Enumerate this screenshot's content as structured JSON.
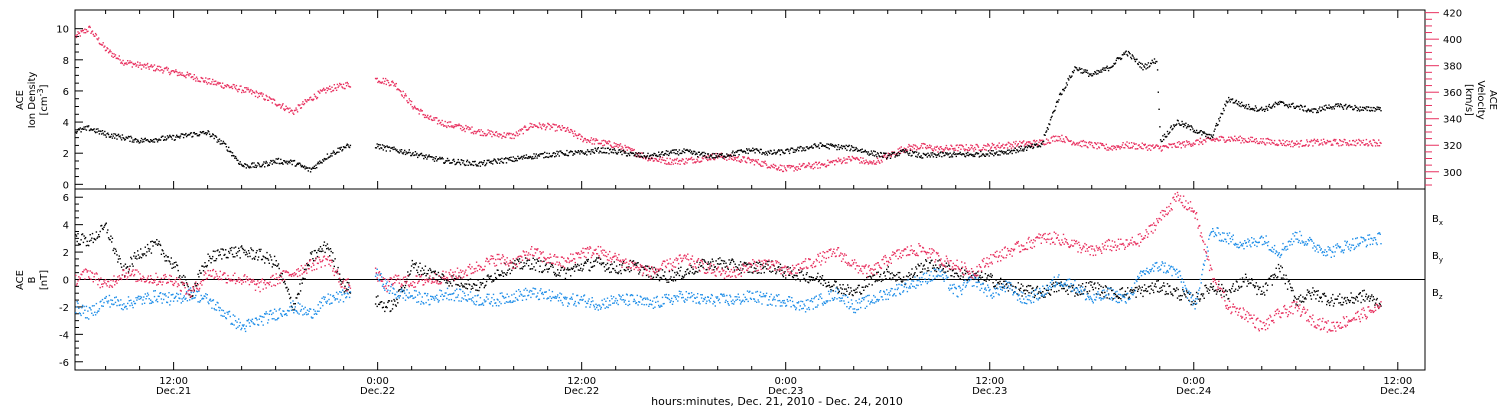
{
  "colors": {
    "black": "#000000",
    "pink": "#e8305f",
    "blue": "#1f8ee8"
  },
  "xaxis": {
    "title": "hours:minutes, Dec. 21, 2010 - Dec. 24, 2010",
    "ticks": [
      {
        "t": 12,
        "time": "12:00",
        "date": "Dec.21"
      },
      {
        "t": 24,
        "time": "0:00",
        "date": "Dec.22"
      },
      {
        "t": 36,
        "time": "12:00",
        "date": "Dec.22"
      },
      {
        "t": 48,
        "time": "0:00",
        "date": "Dec.23"
      },
      {
        "t": 60,
        "time": "12:00",
        "date": "Dec.23"
      },
      {
        "t": 72,
        "time": "0:00",
        "date": "Dec.24"
      },
      {
        "t": 84,
        "time": "12:00",
        "date": "Dec.24"
      }
    ],
    "range_hours": [
      6.2,
      85.6
    ],
    "hours_origin_label": "0:00 Dec.21"
  },
  "chart_data": [
    {
      "type": "scatter",
      "panel": "top",
      "ylabel_left": [
        "ACE",
        "Ion Density",
        "[cm^-3]"
      ],
      "ylabel_right": [
        "ACE",
        "Velocity",
        "[km/s]"
      ],
      "y_left_ticks": [
        "0",
        "2",
        "4",
        "6",
        "8",
        "10"
      ],
      "y_right_ticks": [
        "300",
        "320",
        "340",
        "360",
        "380",
        "400",
        "420"
      ],
      "ylim_left": [
        -0.3,
        11.2
      ],
      "ylim_right": [
        287,
        422
      ],
      "series": [
        {
          "color": "black",
          "x": [
            6.2,
            7,
            8,
            9,
            10,
            11,
            12,
            13,
            14,
            15,
            16,
            17,
            18,
            19,
            20,
            21,
            22,
            23.8,
            24.5,
            26,
            27,
            28,
            29,
            30,
            31,
            32,
            33,
            34,
            35,
            36,
            37,
            38,
            39,
            40,
            41,
            42,
            43,
            44,
            45,
            46,
            47,
            48,
            49,
            50,
            51,
            52,
            53,
            54,
            55,
            56,
            57,
            58,
            59,
            60,
            61,
            62,
            63,
            64,
            65,
            66,
            67,
            68,
            69,
            69.8,
            70,
            71,
            72,
            73,
            74,
            75,
            76,
            77,
            78,
            79,
            80,
            81,
            82,
            83
          ],
          "y": [
            3.4,
            3.6,
            3.2,
            3.0,
            2.8,
            2.9,
            3.0,
            3.2,
            3.3,
            2.5,
            1.2,
            1.2,
            1.5,
            1.4,
            0.9,
            1.8,
            2.4,
            2.5,
            2.3,
            2.0,
            1.7,
            1.5,
            1.4,
            1.3,
            1.5,
            1.6,
            1.8,
            1.9,
            2.0,
            2.0,
            2.2,
            2.1,
            1.9,
            1.8,
            2.0,
            2.1,
            1.9,
            1.8,
            2.0,
            2.2,
            2.0,
            2.1,
            2.3,
            2.5,
            2.4,
            2.3,
            2.0,
            1.8,
            2.1,
            1.8,
            1.9,
            1.9,
            1.9,
            2.0,
            2.1,
            2.3,
            2.5,
            5.5,
            7.5,
            7.0,
            7.5,
            8.5,
            7.5,
            8.0,
            2.8,
            4.0,
            3.5,
            3.0,
            5.5,
            5.0,
            4.8,
            5.2,
            5.0,
            4.7,
            5.0,
            5.0,
            4.8,
            4.9
          ],
          "gaps_hours": [
            [
              22.4,
              23.8
            ]
          ]
        },
        {
          "color": "pink",
          "axis": "right",
          "x": [
            6.2,
            7,
            8,
            9,
            10,
            11,
            12,
            13,
            14,
            15,
            16,
            17,
            18,
            19,
            20,
            21,
            22,
            23.8,
            24.5,
            25,
            26,
            27,
            28,
            29,
            30,
            31,
            32,
            33,
            34,
            35,
            36,
            37,
            38,
            39,
            40,
            41,
            42,
            43,
            44,
            45,
            46,
            47,
            48,
            49,
            50,
            51,
            52,
            53,
            54,
            55,
            56,
            57,
            58,
            59,
            60,
            61,
            62,
            63,
            64,
            65,
            66,
            67,
            68,
            69,
            70,
            71,
            72,
            73,
            74,
            75,
            76,
            77,
            78,
            79,
            80,
            81,
            82,
            83
          ],
          "y": [
            402,
            408,
            392,
            383,
            380,
            378,
            375,
            372,
            368,
            365,
            362,
            358,
            352,
            345,
            355,
            362,
            365,
            370,
            368,
            366,
            350,
            340,
            336,
            333,
            330,
            328,
            327,
            335,
            334,
            332,
            325,
            322,
            320,
            315,
            310,
            308,
            308,
            310,
            312,
            310,
            308,
            305,
            302,
            304,
            305,
            308,
            310,
            306,
            312,
            318,
            319,
            317,
            318,
            318,
            319,
            320,
            321,
            322,
            326,
            322,
            320,
            318,
            320,
            319,
            318,
            320,
            322,
            324,
            325,
            324,
            323,
            322,
            321,
            322,
            322,
            322,
            322,
            322
          ],
          "gaps_hours": [
            [
              22.4,
              23.8
            ]
          ]
        }
      ]
    },
    {
      "type": "scatter",
      "panel": "bottom",
      "ylabel_left": [
        "ACE",
        "B",
        "[nT]"
      ],
      "y_ticks": [
        "-6",
        "-4",
        "-2",
        "0",
        "2",
        "4",
        "6"
      ],
      "ylim": [
        -6.6,
        6.6
      ],
      "zero_line": true,
      "legend": [
        "B_x",
        "B_y",
        "B_z"
      ],
      "series": [
        {
          "name": "Bx",
          "color": "black",
          "x": [
            6.2,
            7,
            8,
            9,
            10,
            11,
            12,
            13,
            14,
            15,
            16,
            17,
            18,
            19,
            20,
            21,
            22,
            23.8,
            24.5,
            25,
            26,
            27,
            28,
            29,
            30,
            31,
            32,
            33,
            34,
            35,
            36,
            37,
            38,
            39,
            40,
            41,
            42,
            43,
            44,
            45,
            46,
            47,
            48,
            49,
            50,
            51,
            52,
            53,
            54,
            55,
            56,
            57,
            58,
            59,
            60,
            61,
            62,
            63,
            64,
            65,
            66,
            67,
            68,
            69,
            70,
            71,
            72,
            73,
            74,
            75,
            76,
            77,
            78,
            79,
            80,
            81,
            82,
            83
          ],
          "y": [
            3.0,
            2.8,
            3.8,
            0.5,
            2.0,
            2.5,
            1.0,
            -1.0,
            1.5,
            2.0,
            2.0,
            1.8,
            1.2,
            -2.0,
            1.5,
            2.5,
            -0.5,
            -1.5,
            -2.0,
            -1.8,
            1.0,
            0.5,
            0.0,
            -0.2,
            -0.5,
            0.5,
            1.0,
            1.2,
            0.8,
            0.5,
            1.0,
            1.2,
            0.8,
            1.0,
            0.5,
            0.2,
            0.5,
            1.0,
            1.2,
            1.0,
            0.8,
            1.0,
            0.5,
            0.3,
            0.0,
            -0.5,
            -1.0,
            0.0,
            0.5,
            0.0,
            1.0,
            1.0,
            0.5,
            0.2,
            0.0,
            -0.5,
            -0.8,
            -1.0,
            -0.5,
            -0.8,
            -0.5,
            -1.0,
            -1.0,
            -0.8,
            -0.5,
            -1.0,
            -1.5,
            -0.5,
            -1.0,
            0.0,
            -1.0,
            0.8,
            -1.5,
            -1.0,
            -1.5,
            -1.5,
            -1.2,
            -1.8
          ],
          "gaps_hours": [
            [
              22.4,
              23.8
            ]
          ]
        },
        {
          "name": "By",
          "color": "blue",
          "x": [
            6.2,
            7,
            8,
            9,
            10,
            11,
            12,
            13,
            14,
            15,
            16,
            17,
            18,
            19,
            20,
            21,
            22,
            23.8,
            24.5,
            25,
            26,
            27,
            28,
            29,
            30,
            31,
            32,
            33,
            34,
            35,
            36,
            37,
            38,
            39,
            40,
            41,
            42,
            43,
            44,
            45,
            46,
            47,
            48,
            49,
            50,
            51,
            52,
            53,
            54,
            55,
            56,
            57,
            58,
            59,
            60,
            61,
            62,
            63,
            64,
            65,
            66,
            67,
            68,
            69,
            70,
            71,
            72,
            73,
            74,
            75,
            76,
            77,
            78,
            79,
            80,
            81,
            82,
            83
          ],
          "y": [
            -2.0,
            -2.5,
            -1.5,
            -1.8,
            -1.5,
            -1.2,
            -1.5,
            -1.0,
            -1.5,
            -2.5,
            -3.5,
            -3.0,
            -2.5,
            -2.0,
            -2.5,
            -1.5,
            -1.2,
            0.5,
            -0.5,
            -1.0,
            -1.2,
            -1.5,
            -1.0,
            -1.2,
            -1.5,
            -1.5,
            -1.2,
            -1.0,
            -1.2,
            -1.5,
            -1.5,
            -1.8,
            -1.5,
            -1.5,
            -1.8,
            -1.5,
            -1.2,
            -1.5,
            -1.5,
            -1.5,
            -1.2,
            -1.5,
            -1.5,
            -2.0,
            -1.5,
            -1.0,
            -2.0,
            -1.5,
            -1.0,
            -0.5,
            0.0,
            0.5,
            -1.0,
            0.0,
            -1.0,
            -0.5,
            -1.5,
            -1.0,
            0.0,
            -0.5,
            -1.5,
            -1.0,
            -1.5,
            0.5,
            1.0,
            0.5,
            -2.0,
            3.5,
            3.0,
            2.5,
            3.0,
            2.0,
            3.2,
            2.5,
            2.0,
            2.5,
            2.8,
            3.0
          ],
          "gaps_hours": [
            [
              22.4,
              23.8
            ]
          ]
        },
        {
          "name": "Bz",
          "color": "pink",
          "x": [
            6.2,
            7,
            8,
            9,
            10,
            11,
            12,
            13,
            14,
            15,
            16,
            17,
            18,
            19,
            20,
            21,
            22,
            23.8,
            24.5,
            25,
            26,
            27,
            28,
            29,
            30,
            31,
            32,
            33,
            34,
            35,
            36,
            37,
            38,
            39,
            40,
            41,
            42,
            43,
            44,
            45,
            46,
            47,
            48,
            49,
            50,
            51,
            52,
            53,
            54,
            55,
            56,
            57,
            58,
            59,
            60,
            61,
            62,
            63,
            64,
            65,
            66,
            67,
            68,
            69,
            70,
            71,
            72,
            73,
            74,
            75,
            76,
            77,
            78,
            79,
            80,
            81,
            82,
            83
          ],
          "y": [
            0.0,
            0.5,
            -0.5,
            0.5,
            0.2,
            0.0,
            0.0,
            -1.0,
            0.5,
            0.2,
            0.0,
            -0.5,
            0.0,
            0.5,
            1.0,
            1.5,
            -0.5,
            0.5,
            -0.5,
            0.0,
            -0.2,
            0.0,
            0.2,
            0.5,
            1.0,
            1.5,
            1.2,
            2.0,
            1.5,
            1.2,
            2.0,
            2.0,
            1.5,
            1.0,
            0.5,
            1.0,
            1.5,
            1.0,
            0.5,
            0.5,
            1.0,
            1.2,
            0.5,
            1.0,
            1.5,
            2.0,
            1.0,
            0.5,
            1.5,
            2.0,
            2.2,
            1.5,
            1.0,
            0.5,
            1.5,
            2.0,
            2.5,
            3.0,
            3.0,
            2.5,
            2.0,
            2.5,
            2.5,
            3.0,
            4.5,
            6.0,
            5.0,
            0.5,
            -2.0,
            -2.5,
            -3.5,
            -2.5,
            -2.0,
            -3.0,
            -3.5,
            -3.0,
            -2.5,
            -2.0
          ],
          "gaps_hours": [
            [
              22.4,
              23.8
            ]
          ]
        }
      ]
    }
  ]
}
